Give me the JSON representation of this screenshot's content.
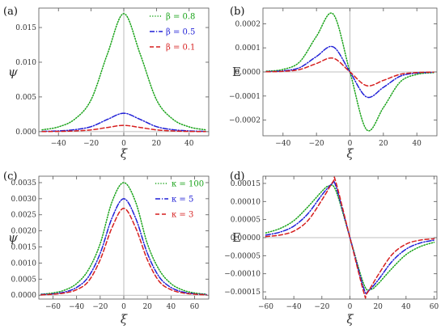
{
  "chart_data": [
    {
      "panel_label": "(a)",
      "type": "line",
      "xlabel": "ξ",
      "ylabel": "ψ",
      "xlim": [
        -52,
        52
      ],
      "ylim": [
        -0.0006,
        0.0178
      ],
      "x_ticks": [
        -40,
        -20,
        0,
        20,
        40
      ],
      "x_tick_labels": [
        "−40",
        "−20",
        "0",
        "20",
        "40"
      ],
      "y_ticks": [
        0.0,
        0.005,
        0.01,
        0.015
      ],
      "y_tick_labels": [
        "0.000",
        "0.005",
        "0.010",
        "0.015"
      ],
      "legend_position": "top-right",
      "series": [
        {
          "name": "β = 0.8",
          "color": "#1aa31a",
          "dash": "dotted",
          "x": [
            -50,
            -40,
            -30,
            -20,
            -10,
            0,
            10,
            20,
            30,
            40,
            50
          ],
          "y": [
            0.00026,
            0.00068,
            0.0018,
            0.0046,
            0.0112,
            0.017,
            0.0112,
            0.0046,
            0.0018,
            0.00068,
            0.00026
          ]
        },
        {
          "name": "β = 0.5",
          "color": "#1f1fd6",
          "dash": "dashdot",
          "x": [
            -50,
            -40,
            -30,
            -20,
            -10,
            0,
            10,
            20,
            30,
            40,
            50
          ],
          "y": [
            4e-05,
            0.0001,
            0.00028,
            0.00072,
            0.00176,
            0.00265,
            0.00176,
            0.00072,
            0.00028,
            0.0001,
            4e-05
          ]
        },
        {
          "name": "β = 0.1",
          "color": "#d61f1f",
          "dash": "dashed",
          "x": [
            -50,
            -40,
            -30,
            -20,
            -10,
            0,
            10,
            20,
            30,
            40,
            50
          ],
          "y": [
            1e-05,
            3e-05,
            0.0001,
            0.00025,
            0.0006,
            0.0009,
            0.0006,
            0.00025,
            0.0001,
            3e-05,
            1e-05
          ]
        }
      ]
    },
    {
      "panel_label": "(b)",
      "type": "line",
      "xlabel": "ξ",
      "ylabel": "E",
      "xlim": [
        -52,
        52
      ],
      "ylim": [
        -0.000265,
        0.000265
      ],
      "x_ticks": [
        -40,
        -20,
        0,
        20,
        40
      ],
      "x_tick_labels": [
        "−40",
        "−20",
        "0",
        "20",
        "40"
      ],
      "y_ticks": [
        -0.0002,
        -0.0001,
        0.0,
        0.0001,
        0.0002
      ],
      "y_tick_labels": [
        "−0.0002",
        "−0.0001",
        "0.0000",
        "0.0001",
        "0.0002"
      ],
      "series": [
        {
          "name": "β = 0.8",
          "color": "#1aa31a",
          "dash": "dotted",
          "x": [
            -50,
            -40,
            -30,
            -20,
            -10,
            0,
            10,
            20,
            30,
            40,
            50
          ],
          "y": [
            3.1e-06,
            1.03e-05,
            4.2e-05,
            0.000148,
            0.00024,
            0.0,
            -0.00024,
            -0.000148,
            -4.2e-05,
            -1.03e-05,
            -3.1e-06
          ]
        },
        {
          "name": "β = 0.5",
          "color": "#1f1fd6",
          "dash": "dashdot",
          "x": [
            -50,
            -40,
            -30,
            -20,
            -10,
            0,
            10,
            20,
            30,
            40,
            50
          ],
          "y": [
            1.3e-06,
            4.5e-06,
            1.8e-05,
            6.4e-05,
            0.000104,
            0.0,
            -0.000104,
            -6.4e-05,
            -1.8e-05,
            -4.5e-06,
            -1.3e-06
          ]
        },
        {
          "name": "β = 0.1",
          "color": "#d61f1f",
          "dash": "dashed",
          "x": [
            -50,
            -40,
            -30,
            -20,
            -10,
            0,
            10,
            20,
            30,
            40,
            50
          ],
          "y": [
            7e-07,
            2.5e-06,
            1e-05,
            3.5e-05,
            5.7e-05,
            0.0,
            -5.7e-05,
            -3.5e-05,
            -1e-05,
            -2.5e-06,
            -7e-07
          ]
        }
      ]
    },
    {
      "panel_label": "(c)",
      "type": "line",
      "xlabel": "ξ",
      "ylabel": "ψ",
      "xlim": [
        -72,
        72
      ],
      "ylim": [
        -0.00012,
        0.0037
      ],
      "x_ticks": [
        -60,
        -40,
        -20,
        0,
        20,
        40,
        60
      ],
      "x_tick_labels": [
        "−60",
        "−40",
        "−20",
        "0",
        "20",
        "40",
        "60"
      ],
      "y_ticks": [
        0.0,
        0.0005,
        0.001,
        0.0015,
        0.002,
        0.0025,
        0.003,
        0.0035
      ],
      "y_tick_labels": [
        "0.0000",
        "0.0005",
        "0.0010",
        "0.0015",
        "0.0020",
        "0.0025",
        "0.0030",
        "0.0035"
      ],
      "legend_position": "top-right",
      "series": [
        {
          "name": "κ = 100",
          "color": "#1aa31a",
          "dash": "dotted",
          "x": [
            -70,
            -60,
            -50,
            -40,
            -30,
            -20,
            -10,
            0,
            10,
            20,
            30,
            40,
            50,
            60,
            70
          ],
          "y": [
            3e-05,
            7e-05,
            0.00016,
            0.00036,
            0.00079,
            0.0016,
            0.0029,
            0.0035,
            0.0029,
            0.0016,
            0.00079,
            0.00036,
            0.00016,
            7e-05,
            3e-05
          ]
        },
        {
          "name": "κ = 5",
          "color": "#1f1fd6",
          "dash": "dashdot",
          "x": [
            -70,
            -60,
            -50,
            -40,
            -30,
            -20,
            -10,
            0,
            10,
            20,
            30,
            40,
            50,
            60,
            70
          ],
          "y": [
            2e-05,
            4e-05,
            0.0001,
            0.00024,
            0.00057,
            0.0013,
            0.0024,
            0.003,
            0.0024,
            0.0013,
            0.00057,
            0.00024,
            0.0001,
            4e-05,
            2e-05
          ]
        },
        {
          "name": "κ = 3",
          "color": "#d61f1f",
          "dash": "dashed",
          "x": [
            -70,
            -60,
            -50,
            -40,
            -30,
            -20,
            -10,
            0,
            10,
            20,
            30,
            40,
            50,
            60,
            70
          ],
          "y": [
            1e-05,
            3e-05,
            7e-05,
            0.00017,
            0.00043,
            0.0011,
            0.0021,
            0.0027,
            0.0021,
            0.0011,
            0.00043,
            0.00017,
            7e-05,
            3e-05,
            1e-05
          ]
        }
      ]
    },
    {
      "panel_label": "(d)",
      "type": "line",
      "xlabel": "ξ",
      "ylabel": "E",
      "xlim": [
        -62,
        62
      ],
      "ylim": [
        -0.00017,
        0.00017
      ],
      "x_ticks": [
        -60,
        -40,
        -20,
        0,
        20,
        40,
        60
      ],
      "x_tick_labels": [
        "−60",
        "−40",
        "−20",
        "0",
        "20",
        "40",
        "60"
      ],
      "y_ticks": [
        -0.00015,
        -0.0001,
        -5e-05,
        0.0,
        5e-05,
        0.0001,
        0.00015
      ],
      "y_tick_labels": [
        "−0.00015",
        "−0.00010",
        "−0.00005",
        "0.00000",
        "0.00005",
        "0.00010",
        "0.00015"
      ],
      "series": [
        {
          "name": "κ = 100",
          "color": "#1aa31a",
          "dash": "dotted",
          "x": [
            -60,
            -50,
            -40,
            -30,
            -20,
            -15,
            -10,
            0,
            10,
            15,
            20,
            30,
            40,
            50,
            60
          ],
          "y": [
            1.3e-05,
            2.5e-05,
            4.7e-05,
            8.5e-05,
            0.000128,
            0.000143,
            0.00013,
            0.0,
            -0.00013,
            -0.000143,
            -0.000128,
            -8.5e-05,
            -4.7e-05,
            -2.5e-05,
            -1.3e-05
          ]
        },
        {
          "name": "κ = 5",
          "color": "#1f1fd6",
          "dash": "dashdot",
          "x": [
            -60,
            -50,
            -40,
            -30,
            -20,
            -13,
            -10,
            0,
            10,
            13,
            20,
            30,
            40,
            50,
            60
          ],
          "y": [
            7e-06,
            1.5e-05,
            3.2e-05,
            6.6e-05,
            0.000118,
            0.000148,
            0.000142,
            0.0,
            -0.000142,
            -0.000148,
            -0.000118,
            -6.6e-05,
            -3.2e-05,
            -1.5e-05,
            -7e-06
          ]
        },
        {
          "name": "κ = 3",
          "color": "#d61f1f",
          "dash": "dashed",
          "x": [
            -60,
            -50,
            -40,
            -30,
            -20,
            -12,
            -10,
            0,
            10,
            12,
            20,
            30,
            40,
            50,
            60
          ],
          "y": [
            3e-06,
            7e-06,
            1.8e-05,
            4.7e-05,
            0.000104,
            0.000155,
            0.000153,
            0.0,
            -0.000153,
            -0.000155,
            -0.000104,
            -4.7e-05,
            -1.8e-05,
            -7e-06,
            -3e-06
          ]
        }
      ]
    }
  ]
}
